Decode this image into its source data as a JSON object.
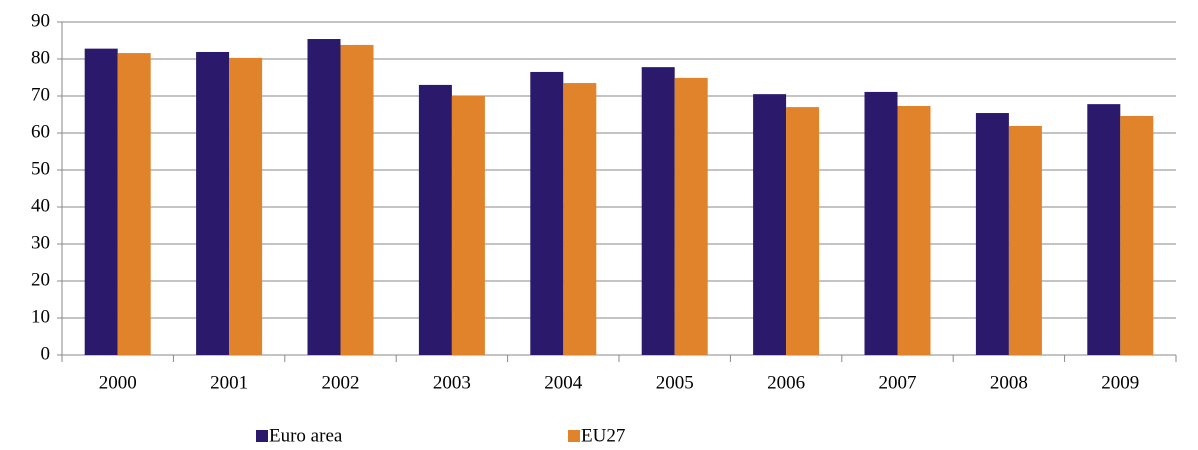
{
  "chart_data": {
    "type": "bar",
    "categories": [
      "2000",
      "2001",
      "2002",
      "2003",
      "2004",
      "2005",
      "2006",
      "2007",
      "2008",
      "2009"
    ],
    "series": [
      {
        "name": "Euro area",
        "color": "#2b1a6c",
        "values": [
          82.8,
          81.9,
          85.4,
          73,
          76.5,
          77.8,
          70.5,
          71.1,
          65.4,
          67.8
        ]
      },
      {
        "name": "EU27",
        "color": "#e0832a",
        "values": [
          81.6,
          80.3,
          83.8,
          70,
          73.5,
          74.9,
          67,
          67.3,
          61.9,
          64.6
        ]
      }
    ],
    "ylim": [
      0,
      90
    ],
    "yticks": [
      0,
      10,
      20,
      30,
      40,
      50,
      60,
      70,
      80,
      90
    ],
    "grid": true,
    "legend": "bottom"
  }
}
